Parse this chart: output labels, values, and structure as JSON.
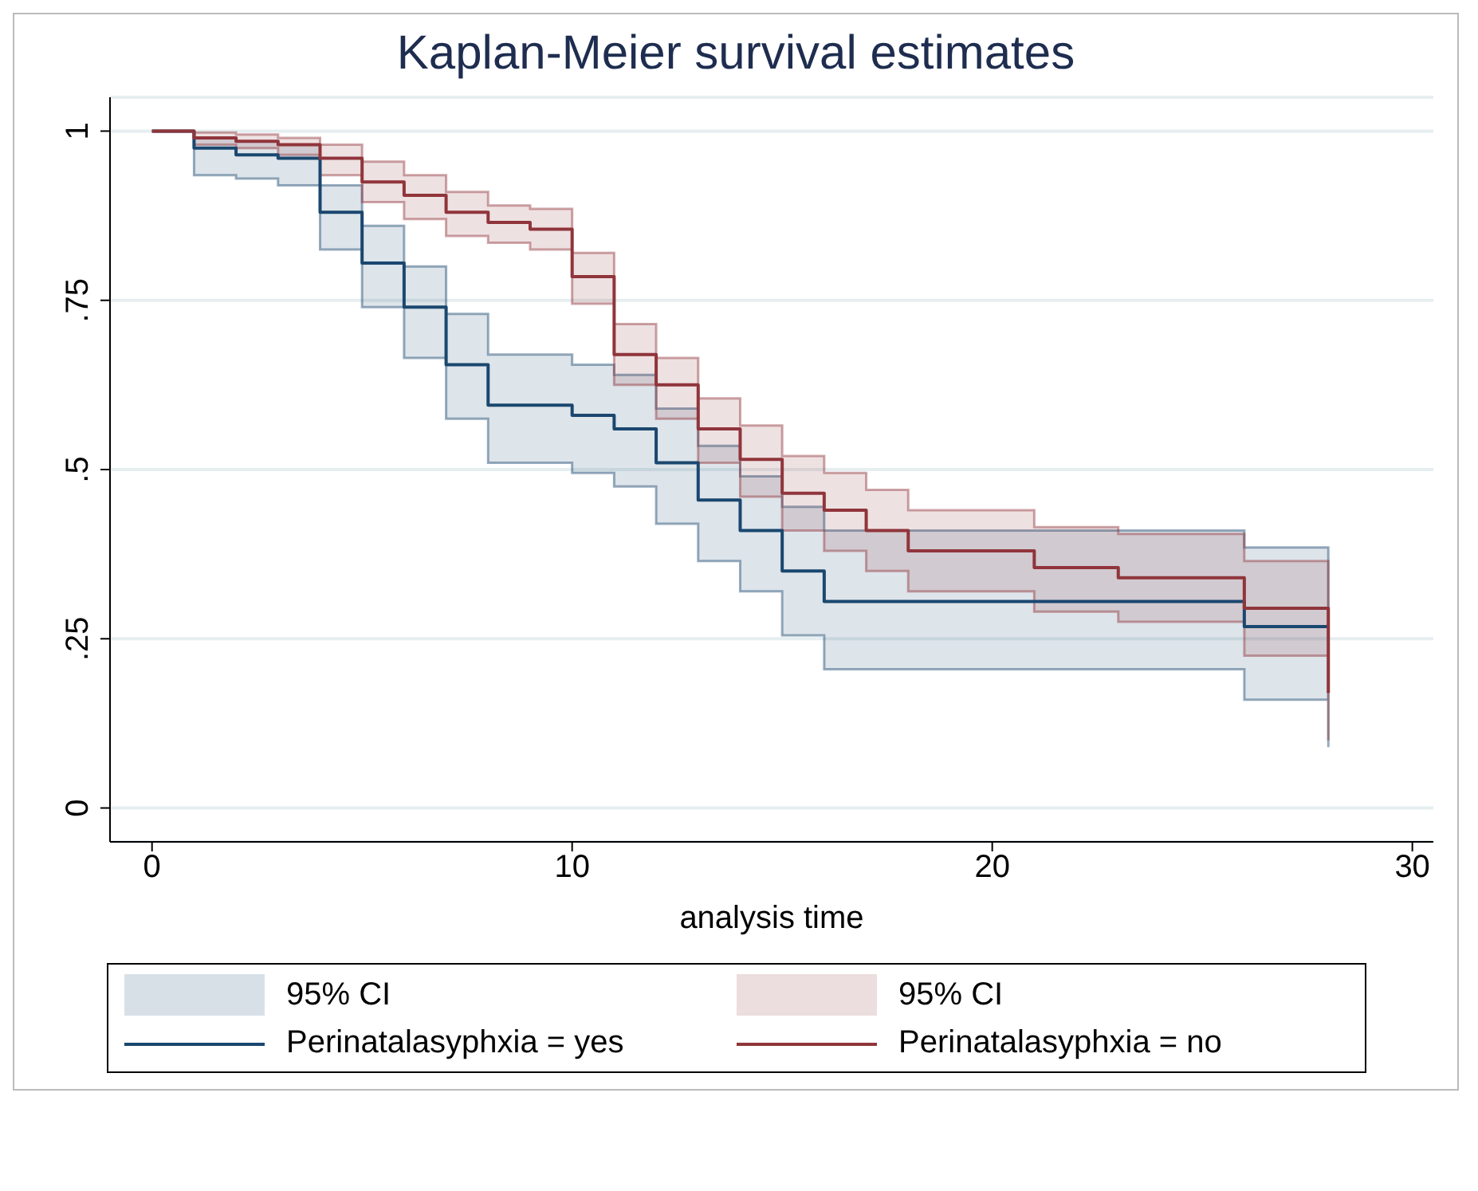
{
  "chart_data": {
    "type": "step",
    "title": "Kaplan-Meier survival estimates",
    "xlabel": "analysis time",
    "xlim": [
      -1,
      30.5
    ],
    "xticks": [
      0,
      10,
      20,
      30
    ],
    "ylim": [
      -0.05,
      1.05
    ],
    "yticks": [
      {
        "value": 0,
        "label": "0"
      },
      {
        "value": 0.25,
        "label": ".25"
      },
      {
        "value": 0.5,
        "label": ".5"
      },
      {
        "value": 0.75,
        "label": ".75"
      },
      {
        "value": 1,
        "label": "1"
      }
    ],
    "grid": "y",
    "legend": "bottom",
    "line_style": "solid",
    "marker": "none",
    "annotations": [
      "95% CI",
      "95% CI"
    ],
    "series": [
      {
        "name": "Perinatalasyphxia = yes",
        "color": "#1a476f",
        "x": [
          0,
          1,
          2,
          3,
          4,
          5,
          6,
          7,
          8,
          10,
          11,
          12,
          13,
          14,
          15,
          16,
          26,
          28
        ],
        "values": [
          1,
          0.975,
          0.965,
          0.96,
          0.88,
          0.805,
          0.74,
          0.655,
          0.595,
          0.58,
          0.56,
          0.51,
          0.455,
          0.41,
          0.35,
          0.305,
          0.268,
          0.268
        ],
        "lower": [
          1,
          0.935,
          0.93,
          0.92,
          0.825,
          0.74,
          0.665,
          0.575,
          0.51,
          0.495,
          0.475,
          0.42,
          0.365,
          0.32,
          0.255,
          0.205,
          0.16,
          0.09
        ],
        "upper": [
          1,
          0.99,
          0.985,
          0.98,
          0.92,
          0.86,
          0.8,
          0.73,
          0.67,
          0.655,
          0.64,
          0.59,
          0.535,
          0.49,
          0.445,
          0.41,
          0.385,
          0.385
        ]
      },
      {
        "name": "Perinatalasyphxia = no",
        "color": "#90353b",
        "x": [
          0,
          1,
          2,
          3,
          4,
          5,
          6,
          7,
          8,
          9,
          10,
          11,
          12,
          13,
          14,
          15,
          16,
          17,
          18,
          21,
          23,
          26,
          28
        ],
        "values": [
          1,
          0.99,
          0.985,
          0.98,
          0.96,
          0.925,
          0.905,
          0.88,
          0.865,
          0.855,
          0.785,
          0.67,
          0.625,
          0.56,
          0.515,
          0.465,
          0.44,
          0.41,
          0.38,
          0.355,
          0.34,
          0.295,
          0.17
        ],
        "lower": [
          1,
          0.98,
          0.975,
          0.965,
          0.935,
          0.895,
          0.87,
          0.845,
          0.835,
          0.825,
          0.745,
          0.625,
          0.575,
          0.51,
          0.46,
          0.41,
          0.38,
          0.35,
          0.32,
          0.29,
          0.275,
          0.225,
          0.1
        ],
        "upper": [
          1,
          0.998,
          0.995,
          0.99,
          0.98,
          0.955,
          0.935,
          0.91,
          0.89,
          0.885,
          0.82,
          0.715,
          0.665,
          0.605,
          0.565,
          0.52,
          0.495,
          0.47,
          0.44,
          0.415,
          0.405,
          0.365,
          0.365
        ]
      }
    ]
  }
}
